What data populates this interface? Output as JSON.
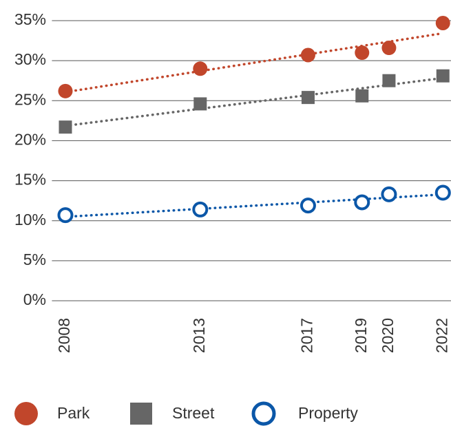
{
  "chart_data": {
    "type": "scatter",
    "x": [
      2008,
      2013,
      2017,
      2019,
      2020,
      2022
    ],
    "xlim": [
      2007.5,
      2022.3
    ],
    "xticks": [
      2008,
      2013,
      2017,
      2019,
      2020,
      2022
    ],
    "ylim": [
      0,
      35
    ],
    "yticks": [
      {
        "value": 0,
        "label": "0%"
      },
      {
        "value": 5,
        "label": "5%"
      },
      {
        "value": 10,
        "label": "10%"
      },
      {
        "value": 15,
        "label": "15%"
      },
      {
        "value": 20,
        "label": "20%"
      },
      {
        "value": 25,
        "label": "25%"
      },
      {
        "value": 30,
        "label": "30%"
      },
      {
        "value": 35,
        "label": "35%"
      }
    ],
    "grid": true,
    "trendline": true,
    "legend": "bottom",
    "series": [
      {
        "name": "Park",
        "color": "#c1462b",
        "marker": "circle",
        "values": [
          26.2,
          29.0,
          30.7,
          31.0,
          31.6,
          34.7
        ]
      },
      {
        "name": "Street",
        "color": "#666666",
        "marker": "square",
        "values": [
          21.7,
          24.6,
          25.4,
          25.6,
          27.5,
          28.1
        ]
      },
      {
        "name": "Property",
        "color": "#0b57a8",
        "marker": "circle-open",
        "values": [
          10.7,
          11.4,
          11.9,
          12.3,
          13.3,
          13.5
        ]
      }
    ]
  }
}
